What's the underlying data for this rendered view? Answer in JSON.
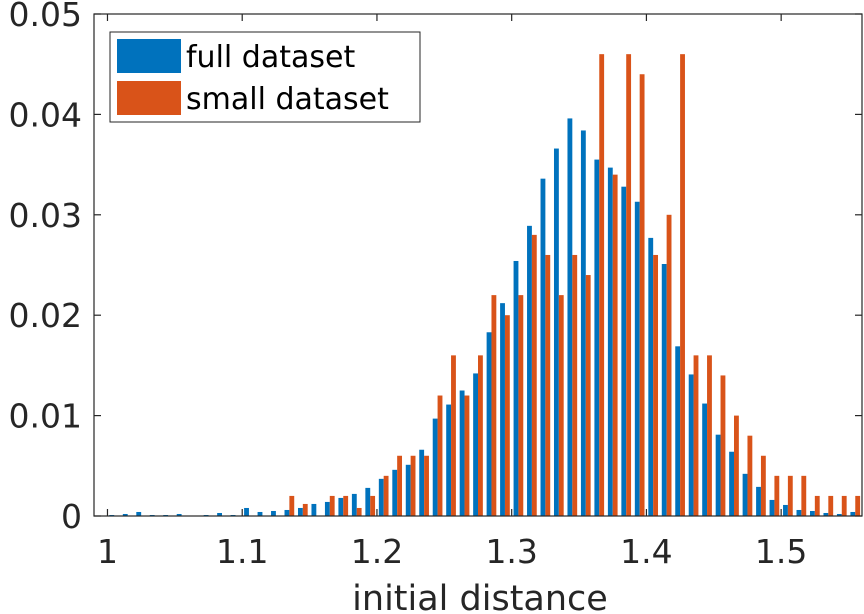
{
  "chart_data": {
    "type": "bar",
    "title": "",
    "xlabel": "initial distance",
    "ylabel": "",
    "xlim": [
      0.99,
      1.56
    ],
    "ylim": [
      0,
      0.05
    ],
    "grid": false,
    "legend_position": "top-left",
    "x_ticks": [
      "1",
      "1.1",
      "1.2",
      "1.3",
      "1.4",
      "1.5"
    ],
    "y_ticks": [
      "0",
      "0.01",
      "0.02",
      "0.03",
      "0.04",
      "0.05"
    ],
    "x": [
      1.005,
      1.015,
      1.025,
      1.035,
      1.045,
      1.055,
      1.065,
      1.075,
      1.085,
      1.095,
      1.105,
      1.115,
      1.125,
      1.135,
      1.145,
      1.155,
      1.165,
      1.175,
      1.185,
      1.195,
      1.205,
      1.215,
      1.225,
      1.235,
      1.245,
      1.255,
      1.265,
      1.275,
      1.285,
      1.295,
      1.305,
      1.315,
      1.325,
      1.335,
      1.345,
      1.355,
      1.365,
      1.375,
      1.385,
      1.395,
      1.405,
      1.415,
      1.425,
      1.435,
      1.445,
      1.455,
      1.465,
      1.475,
      1.485,
      1.495,
      1.505,
      1.515,
      1.525,
      1.535,
      1.545,
      1.555
    ],
    "series": [
      {
        "name": "full dataset",
        "color": "#0072BD",
        "values": [
          0.0001,
          0.0002,
          0.0004,
          0.0001,
          0.0001,
          0.0002,
          0,
          0.0001,
          0.0003,
          0.0001,
          0.0008,
          0.0004,
          0.0005,
          0.0006,
          0.0008,
          0.0012,
          0.0014,
          0.0018,
          0.0022,
          0.0028,
          0.0037,
          0.0046,
          0.0051,
          0.0066,
          0.0097,
          0.0111,
          0.0125,
          0.0142,
          0.0183,
          0.0212,
          0.0254,
          0.0289,
          0.0336,
          0.0366,
          0.0396,
          0.0384,
          0.0355,
          0.0347,
          0.0328,
          0.0313,
          0.0277,
          0.0251,
          0.0169,
          0.0141,
          0.0112,
          0.0081,
          0.0064,
          0.0042,
          0.0029,
          0.0016,
          0.0011,
          0.0006,
          0.0005,
          0.0003,
          0.0002,
          0.0004
        ]
      },
      {
        "name": "small dataset",
        "color": "#D95319",
        "values": [
          0,
          0,
          0,
          0,
          0,
          0,
          0,
          0,
          0,
          0,
          0,
          0,
          0,
          0.002,
          0.0012,
          0,
          0.002,
          0.002,
          0.0008,
          0.002,
          0.004,
          0.006,
          0.006,
          0.006,
          0.012,
          0.016,
          0.012,
          0.016,
          0.022,
          0.02,
          0.022,
          0.028,
          0.026,
          0.022,
          0.026,
          0.024,
          0.046,
          0.034,
          0.046,
          0.044,
          0.026,
          0.03,
          0.046,
          0.016,
          0.016,
          0.014,
          0.01,
          0.008,
          0.006,
          0.004,
          0.004,
          0.004,
          0.002,
          0.002,
          0.002,
          0.002
        ]
      }
    ]
  }
}
